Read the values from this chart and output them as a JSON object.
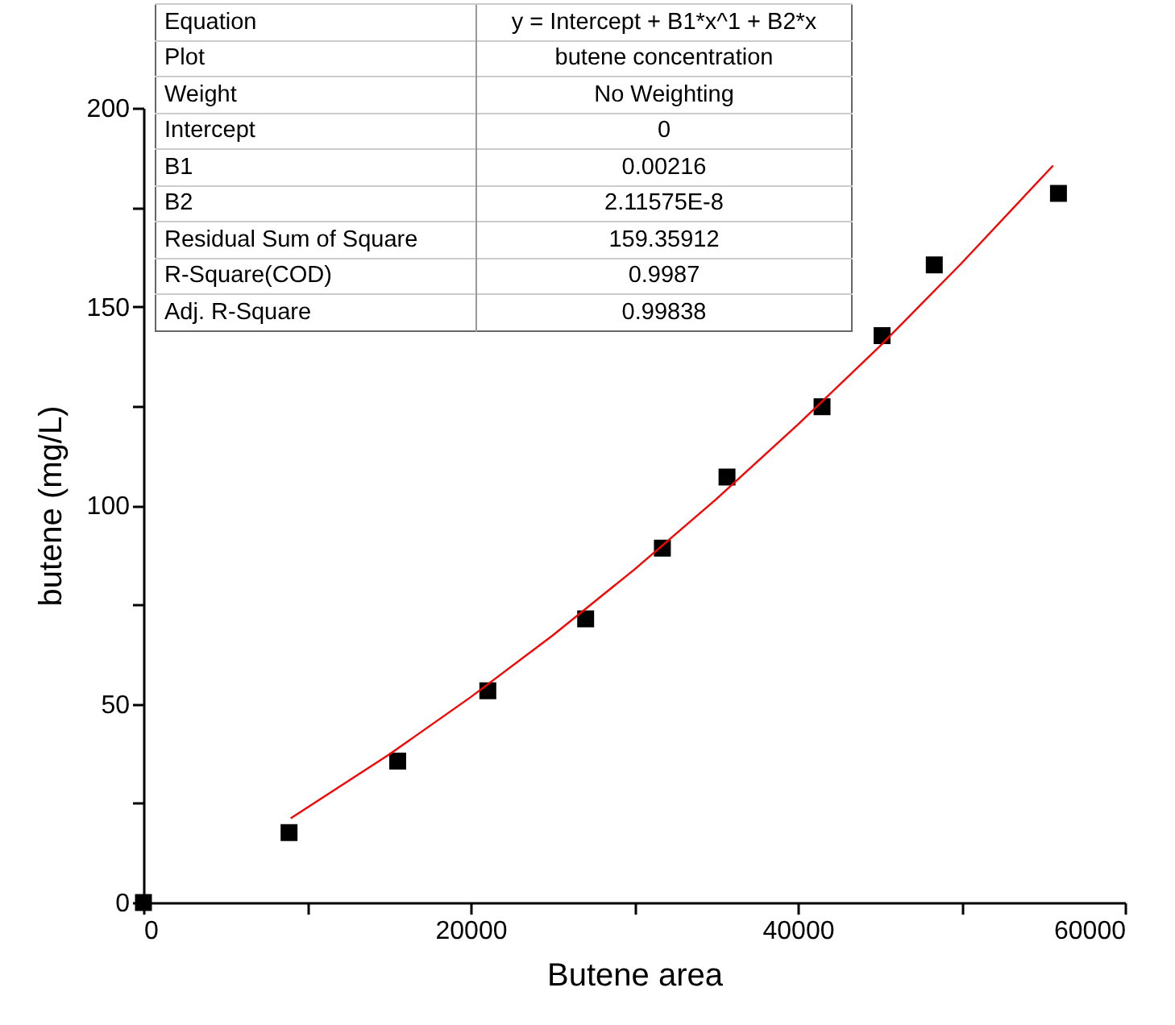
{
  "chart_data": {
    "type": "scatter",
    "xlabel": "Butene area",
    "ylabel": "butene (mg/L)",
    "xlim": [
      0,
      60000
    ],
    "ylim": [
      0,
      200
    ],
    "xticks": [
      0,
      {
        "value": 10000,
        "label": null
      },
      20000,
      {
        "value": 30000,
        "label": null
      },
      40000,
      {
        "value": 50000,
        "label": null
      },
      60000
    ],
    "yticks": [
      0,
      {
        "value": 25,
        "label": null
      },
      50,
      {
        "value": 75,
        "label": null
      },
      100,
      {
        "value": 125,
        "label": null
      },
      150,
      {
        "value": 175,
        "label": null
      },
      200
    ],
    "grid": false,
    "series": [
      {
        "marker": "square",
        "color": "#000000",
        "x": [
          0,
          8900,
          15540,
          21050,
          27030,
          31720,
          35670,
          41480,
          45150,
          48340,
          55930
        ],
        "values": [
          0,
          17.6,
          35.6,
          53.3,
          71.4,
          89.2,
          107.1,
          124.8,
          142.7,
          160.5,
          178.5
        ]
      },
      {
        "type": "line",
        "color": "#ff0000",
        "x": [
          9000,
          15000,
          20000,
          25000,
          30000,
          35000,
          40000,
          45000,
          50000,
          55600
        ],
        "values": [
          21.2,
          37.2,
          51.7,
          67.2,
          83.8,
          101.5,
          120.3,
          140.0,
          160.9,
          185.5
        ]
      }
    ],
    "annotations": [
      "Equation",
      "y = Intercept + B1*x^1 + B2*x",
      "Plot",
      "butene concentration",
      "Weight",
      "No Weighting",
      "Intercept",
      "0",
      "B1",
      "0.00216",
      "B2",
      "2.11575E-8",
      "Residual Sum of Square",
      "159.35912",
      "R-Square(COD)",
      "0.9987",
      "Adj. R-Square",
      "0.99838"
    ]
  }
}
